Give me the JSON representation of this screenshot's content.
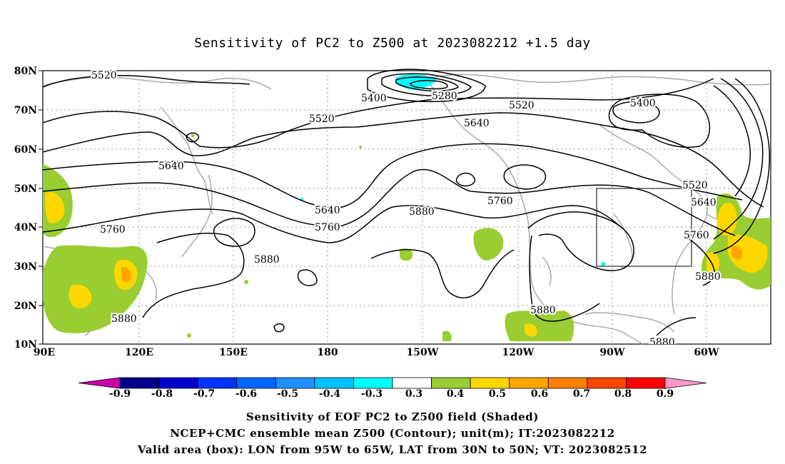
{
  "title": "Sensitivity of PC2 to Z500 at 2023082212 +1.5 day",
  "map": {
    "lat_ticks": [
      "80N",
      "70N",
      "60N",
      "50N",
      "40N",
      "30N",
      "20N",
      "10N"
    ],
    "lon_ticks": [
      "90E",
      "120E",
      "150E",
      "180",
      "150W",
      "120W",
      "90W",
      "60W"
    ],
    "valid_box": {
      "lon_from": "95W",
      "lon_to": "65W",
      "lat_from": "30N",
      "lat_to": "50N"
    },
    "contour_labels": [
      "5520",
      "5400",
      "5280",
      "5520",
      "5400",
      "5520",
      "5640",
      "5640",
      "5640",
      "5760",
      "5880",
      "5760",
      "5520",
      "5640",
      "5760",
      "5880",
      "5760",
      "5880",
      "5880",
      "5880",
      "5880"
    ]
  },
  "colorbar": {
    "labels": [
      "-0.9",
      "-0.8",
      "-0.7",
      "-0.6",
      "-0.5",
      "-0.4",
      "-0.3",
      "0.3",
      "0.4",
      "0.5",
      "0.6",
      "0.7",
      "0.8",
      "0.9"
    ],
    "colors": [
      "#cc00aa",
      "#00008b",
      "#0000cd",
      "#0033ff",
      "#0066ff",
      "#1e90ff",
      "#00bfff",
      "#00ffff",
      "#ffffff",
      "#9acd32",
      "#ffd700",
      "#ffa500",
      "#ff7f00",
      "#ff4500",
      "#ff0000",
      "#ff99cc"
    ]
  },
  "captions": [
    "Sensitivity of EOF PC2 to Z500 field (Shaded)",
    "NCEP+CMC ensemble mean Z500 (Contour); unit(m); IT:2023082212",
    "Valid area (box): LON from 95W to 65W, LAT from 30N to 50N; VT: 2023082512"
  ]
}
